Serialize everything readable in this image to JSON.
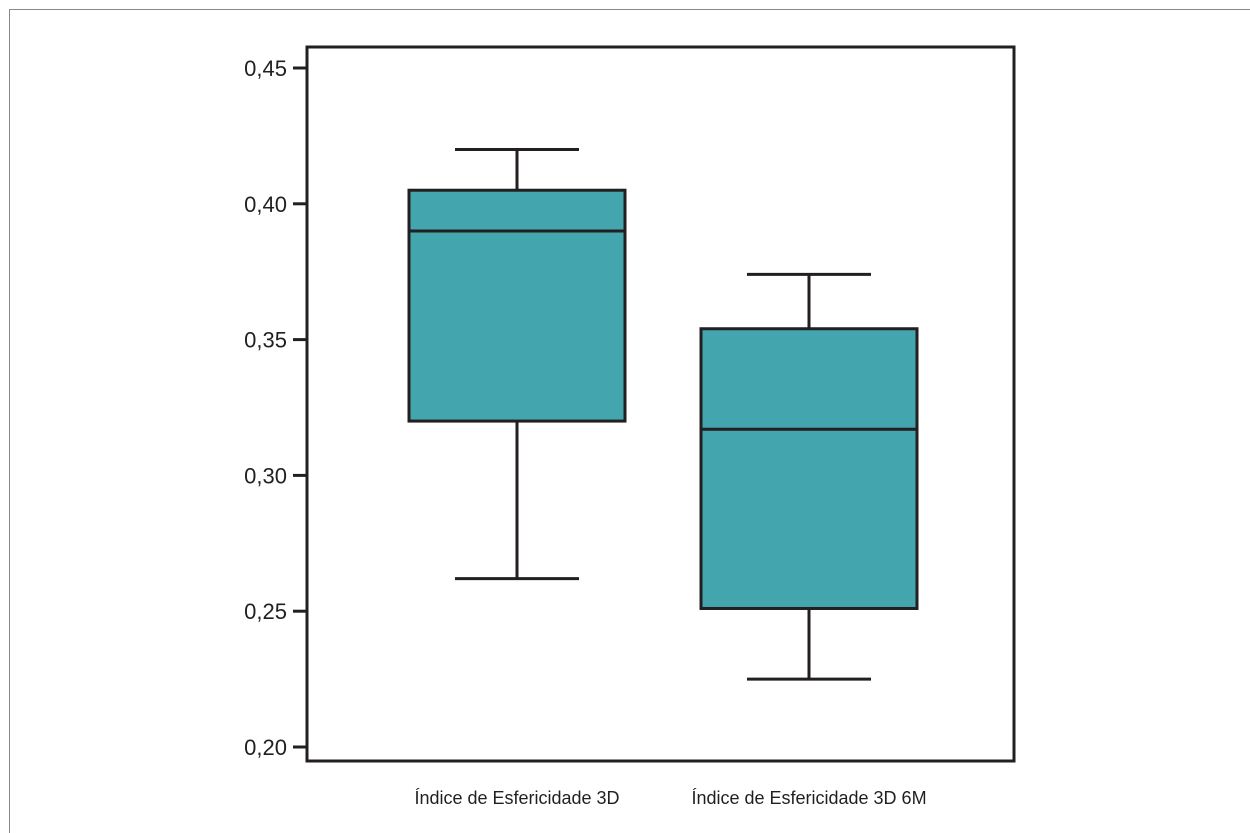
{
  "chart_data": {
    "type": "boxplot",
    "categories": [
      "Índice de Esfericidade 3D",
      "Índice de Esfericidade 3D 6M"
    ],
    "boxes": [
      {
        "whisker_low": 0.262,
        "q1": 0.32,
        "median": 0.39,
        "q3": 0.405,
        "whisker_high": 0.42
      },
      {
        "whisker_low": 0.225,
        "q1": 0.251,
        "median": 0.317,
        "q3": 0.354,
        "whisker_high": 0.374
      }
    ],
    "yticks": [
      "0,20",
      "0,25",
      "0,30",
      "0,35",
      "0,40",
      "0,45"
    ],
    "ytick_values": [
      0.2,
      0.25,
      0.3,
      0.35,
      0.4,
      0.45
    ],
    "ylim": [
      0.195,
      0.458
    ],
    "xlabel": "",
    "ylabel": "",
    "title": "",
    "grid": false,
    "box_color": "#43a5ad",
    "line_color": "#231f20"
  }
}
